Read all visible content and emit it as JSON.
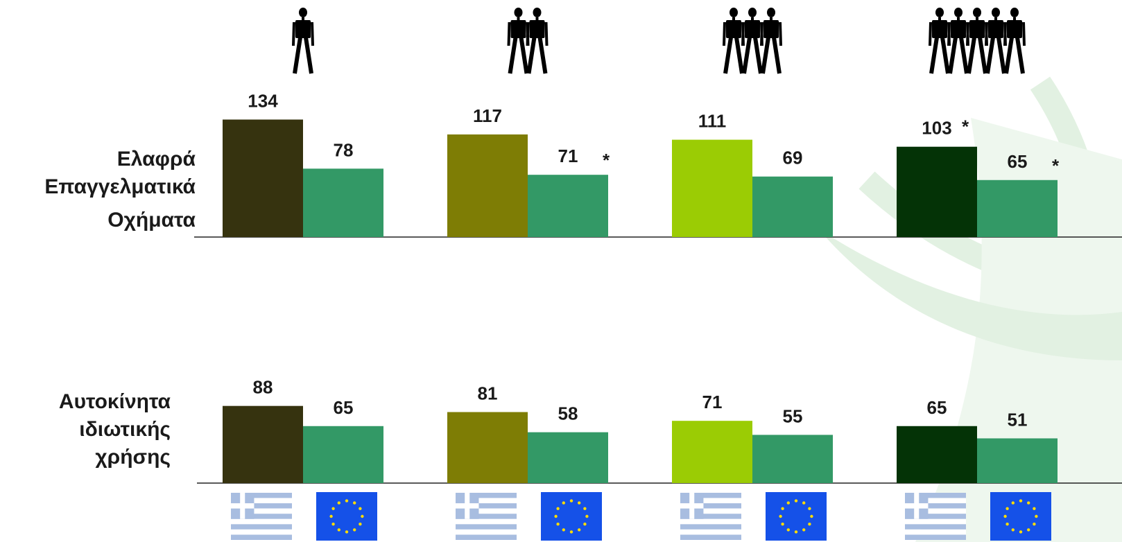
{
  "colors": {
    "greece_1": "#36330f",
    "greece_2": "#7e7d05",
    "greece_3": "#9bcc04",
    "greece_4": "#043306",
    "eu": "#339966",
    "flag_gr": "#a8bde0",
    "flag_eu": "#1551e8",
    "flag_star": "#ffdc00",
    "watermark": "#e2f1e2"
  },
  "icons": {
    "people": "person-icon",
    "flag_greece": "greece-flag-icon",
    "flag_eu": "eu-flag-icon"
  },
  "chart_data": {
    "type": "bar",
    "groups": [
      {
        "people_count": 1
      },
      {
        "people_count": 2
      },
      {
        "people_count": 3
      },
      {
        "people_count": 5
      }
    ],
    "bar_order": [
      "Greece",
      "EU"
    ],
    "panels": [
      {
        "label_lines": [
          "Ελαφρά",
          "Επαγγελματικά",
          "Οχήματα"
        ],
        "greece": [
          134,
          117,
          111,
          103
        ],
        "eu": [
          78,
          71,
          69,
          65
        ],
        "greece_asterisk": [
          false,
          false,
          false,
          true
        ],
        "eu_asterisk": [
          false,
          true,
          false,
          true
        ]
      },
      {
        "label_lines": [
          "Αυτοκίνητα",
          "ιδιωτικής",
          "χρήσης"
        ],
        "greece": [
          88,
          81,
          71,
          65
        ],
        "eu": [
          65,
          58,
          55,
          51
        ],
        "greece_asterisk": [
          false,
          false,
          false,
          false
        ],
        "eu_asterisk": [
          false,
          false,
          false,
          false
        ]
      }
    ],
    "asterisk_text": "*",
    "ylim": [
      0,
      140
    ]
  }
}
